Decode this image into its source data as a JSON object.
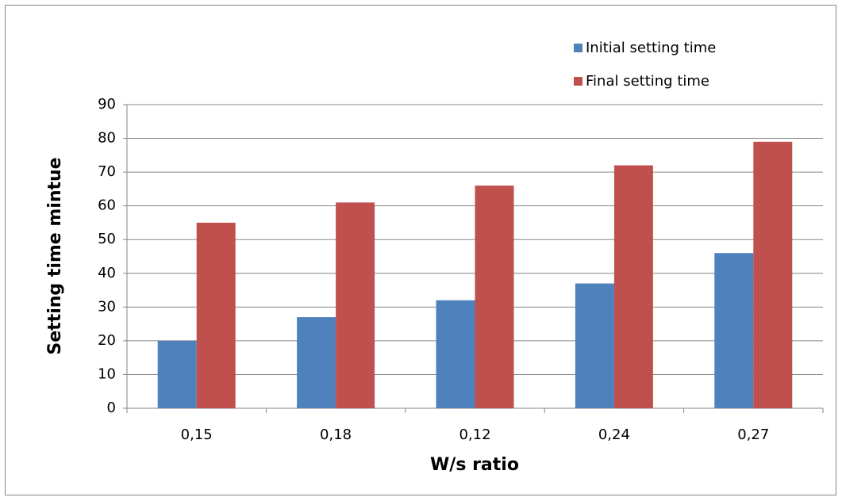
{
  "chart_data": {
    "type": "bar",
    "categories": [
      "0,15",
      "0,18",
      "0,12",
      "0,24",
      "0,27"
    ],
    "series": [
      {
        "name": "Initial setting time",
        "color": "#4f81bd",
        "values": [
          20,
          27,
          32,
          37,
          46
        ]
      },
      {
        "name": "Final setting time",
        "color": "#c0504d",
        "values": [
          55,
          61,
          66,
          72,
          79
        ]
      }
    ],
    "x_label": "W/s ratio",
    "y_label": "Setting time mintue",
    "ylim": [
      0,
      90
    ],
    "yticks": [
      0,
      10,
      20,
      30,
      40,
      50,
      60,
      70,
      80,
      90
    ],
    "grid": true,
    "legend": "top-right"
  }
}
